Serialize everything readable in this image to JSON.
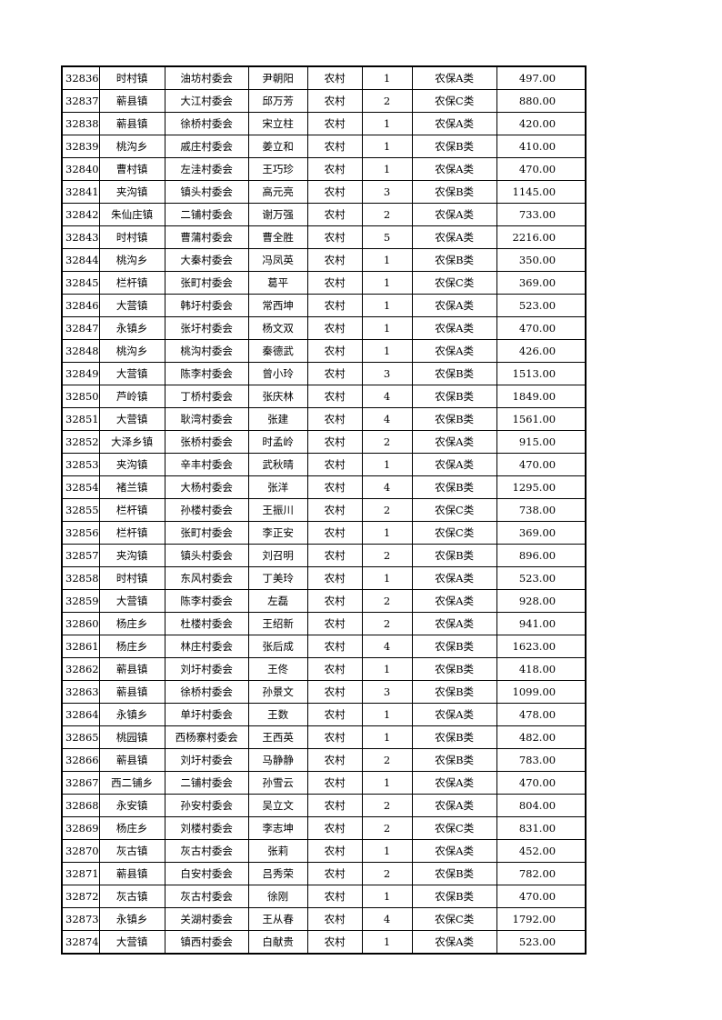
{
  "rows": [
    [
      "32836",
      "时村镇",
      "油坊村委会",
      "尹朝阳",
      "农村",
      "1",
      "农保A类",
      "497.00"
    ],
    [
      "32837",
      "蕲县镇",
      "大江村委会",
      "邱万芳",
      "农村",
      "2",
      "农保C类",
      "880.00"
    ],
    [
      "32838",
      "蕲县镇",
      "徐桥村委会",
      "宋立柱",
      "农村",
      "1",
      "农保A类",
      "420.00"
    ],
    [
      "32839",
      "桃沟乡",
      "戚庄村委会",
      "姜立和",
      "农村",
      "1",
      "农保B类",
      "410.00"
    ],
    [
      "32840",
      "曹村镇",
      "左洼村委会",
      "王巧珍",
      "农村",
      "1",
      "农保A类",
      "470.00"
    ],
    [
      "32841",
      "夹沟镇",
      "镇头村委会",
      "高元亮",
      "农村",
      "3",
      "农保B类",
      "1145.00"
    ],
    [
      "32842",
      "朱仙庄镇",
      "二铺村委会",
      "谢万强",
      "农村",
      "2",
      "农保A类",
      "733.00"
    ],
    [
      "32843",
      "时村镇",
      "曹蒲村委会",
      "曹全胜",
      "农村",
      "5",
      "农保A类",
      "2216.00"
    ],
    [
      "32844",
      "桃沟乡",
      "大秦村委会",
      "冯凤英",
      "农村",
      "1",
      "农保B类",
      "350.00"
    ],
    [
      "32845",
      "栏杆镇",
      "张町村委会",
      "葛平",
      "农村",
      "1",
      "农保C类",
      "369.00"
    ],
    [
      "32846",
      "大营镇",
      "韩圩村委会",
      "常西坤",
      "农村",
      "1",
      "农保A类",
      "523.00"
    ],
    [
      "32847",
      "永镇乡",
      "张圩村委会",
      "杨文双",
      "农村",
      "1",
      "农保A类",
      "470.00"
    ],
    [
      "32848",
      "桃沟乡",
      "桃沟村委会",
      "秦德武",
      "农村",
      "1",
      "农保A类",
      "426.00"
    ],
    [
      "32849",
      "大营镇",
      "陈李村委会",
      "曾小玲",
      "农村",
      "3",
      "农保B类",
      "1513.00"
    ],
    [
      "32850",
      "芦岭镇",
      "丁桥村委会",
      "张庆林",
      "农村",
      "4",
      "农保B类",
      "1849.00"
    ],
    [
      "32851",
      "大营镇",
      "耿湾村委会",
      "张建",
      "农村",
      "4",
      "农保B类",
      "1561.00"
    ],
    [
      "32852",
      "大泽乡镇",
      "张桥村委会",
      "时孟岭",
      "农村",
      "2",
      "农保A类",
      "915.00"
    ],
    [
      "32853",
      "夹沟镇",
      "辛丰村委会",
      "武秋晴",
      "农村",
      "1",
      "农保A类",
      "470.00"
    ],
    [
      "32854",
      "褚兰镇",
      "大杨村委会",
      "张洋",
      "农村",
      "4",
      "农保B类",
      "1295.00"
    ],
    [
      "32855",
      "栏杆镇",
      "孙楼村委会",
      "王振川",
      "农村",
      "2",
      "农保C类",
      "738.00"
    ],
    [
      "32856",
      "栏杆镇",
      "张町村委会",
      "李正安",
      "农村",
      "1",
      "农保C类",
      "369.00"
    ],
    [
      "32857",
      "夹沟镇",
      "镇头村委会",
      "刘召明",
      "农村",
      "2",
      "农保B类",
      "896.00"
    ],
    [
      "32858",
      "时村镇",
      "东风村委会",
      "丁美玲",
      "农村",
      "1",
      "农保A类",
      "523.00"
    ],
    [
      "32859",
      "大营镇",
      "陈李村委会",
      "左磊",
      "农村",
      "2",
      "农保A类",
      "928.00"
    ],
    [
      "32860",
      "杨庄乡",
      "杜楼村委会",
      "王绍新",
      "农村",
      "2",
      "农保A类",
      "941.00"
    ],
    [
      "32861",
      "杨庄乡",
      "林庄村委会",
      "张后成",
      "农村",
      "4",
      "农保B类",
      "1623.00"
    ],
    [
      "32862",
      "蕲县镇",
      "刘圩村委会",
      "王佟",
      "农村",
      "1",
      "农保B类",
      "418.00"
    ],
    [
      "32863",
      "蕲县镇",
      "徐桥村委会",
      "孙景文",
      "农村",
      "3",
      "农保B类",
      "1099.00"
    ],
    [
      "32864",
      "永镇乡",
      "单圩村委会",
      "王数",
      "农村",
      "1",
      "农保A类",
      "478.00"
    ],
    [
      "32865",
      "桃园镇",
      "西杨寨村委会",
      "王西英",
      "农村",
      "1",
      "农保B类",
      "482.00"
    ],
    [
      "32866",
      "蕲县镇",
      "刘圩村委会",
      "马静静",
      "农村",
      "2",
      "农保B类",
      "783.00"
    ],
    [
      "32867",
      "西二铺乡",
      "二铺村委会",
      "孙雪云",
      "农村",
      "1",
      "农保A类",
      "470.00"
    ],
    [
      "32868",
      "永安镇",
      "孙安村委会",
      "吴立文",
      "农村",
      "2",
      "农保A类",
      "804.00"
    ],
    [
      "32869",
      "杨庄乡",
      "刘楼村委会",
      "李志坤",
      "农村",
      "2",
      "农保C类",
      "831.00"
    ],
    [
      "32870",
      "灰古镇",
      "灰古村委会",
      "张莉",
      "农村",
      "1",
      "农保A类",
      "452.00"
    ],
    [
      "32871",
      "蕲县镇",
      "白安村委会",
      "吕秀荣",
      "农村",
      "2",
      "农保B类",
      "782.00"
    ],
    [
      "32872",
      "灰古镇",
      "灰古村委会",
      "徐刚",
      "农村",
      "1",
      "农保B类",
      "470.00"
    ],
    [
      "32873",
      "永镇乡",
      "关湖村委会",
      "王从春",
      "农村",
      "4",
      "农保C类",
      "1792.00"
    ],
    [
      "32874",
      "大营镇",
      "镇西村委会",
      "白献贵",
      "农村",
      "1",
      "农保A类",
      "523.00"
    ]
  ]
}
